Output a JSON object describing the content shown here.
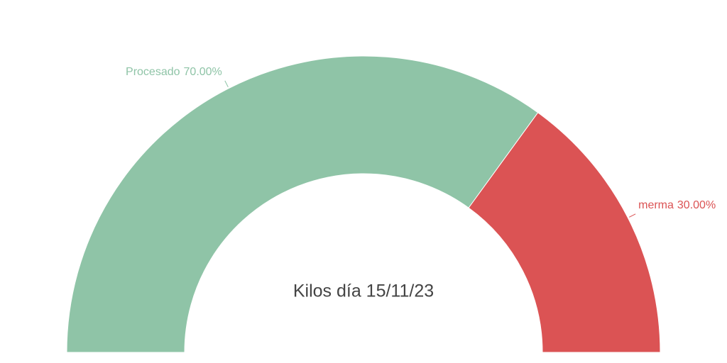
{
  "chart_data": {
    "type": "pie",
    "title": "Kilos día 15/11/23",
    "categories": [
      "Procesado",
      "merma"
    ],
    "values": [
      70,
      30
    ],
    "value_labels": [
      "70.00%",
      "30.00%"
    ],
    "colors": [
      "#8fc4a7",
      "#db5354"
    ]
  }
}
